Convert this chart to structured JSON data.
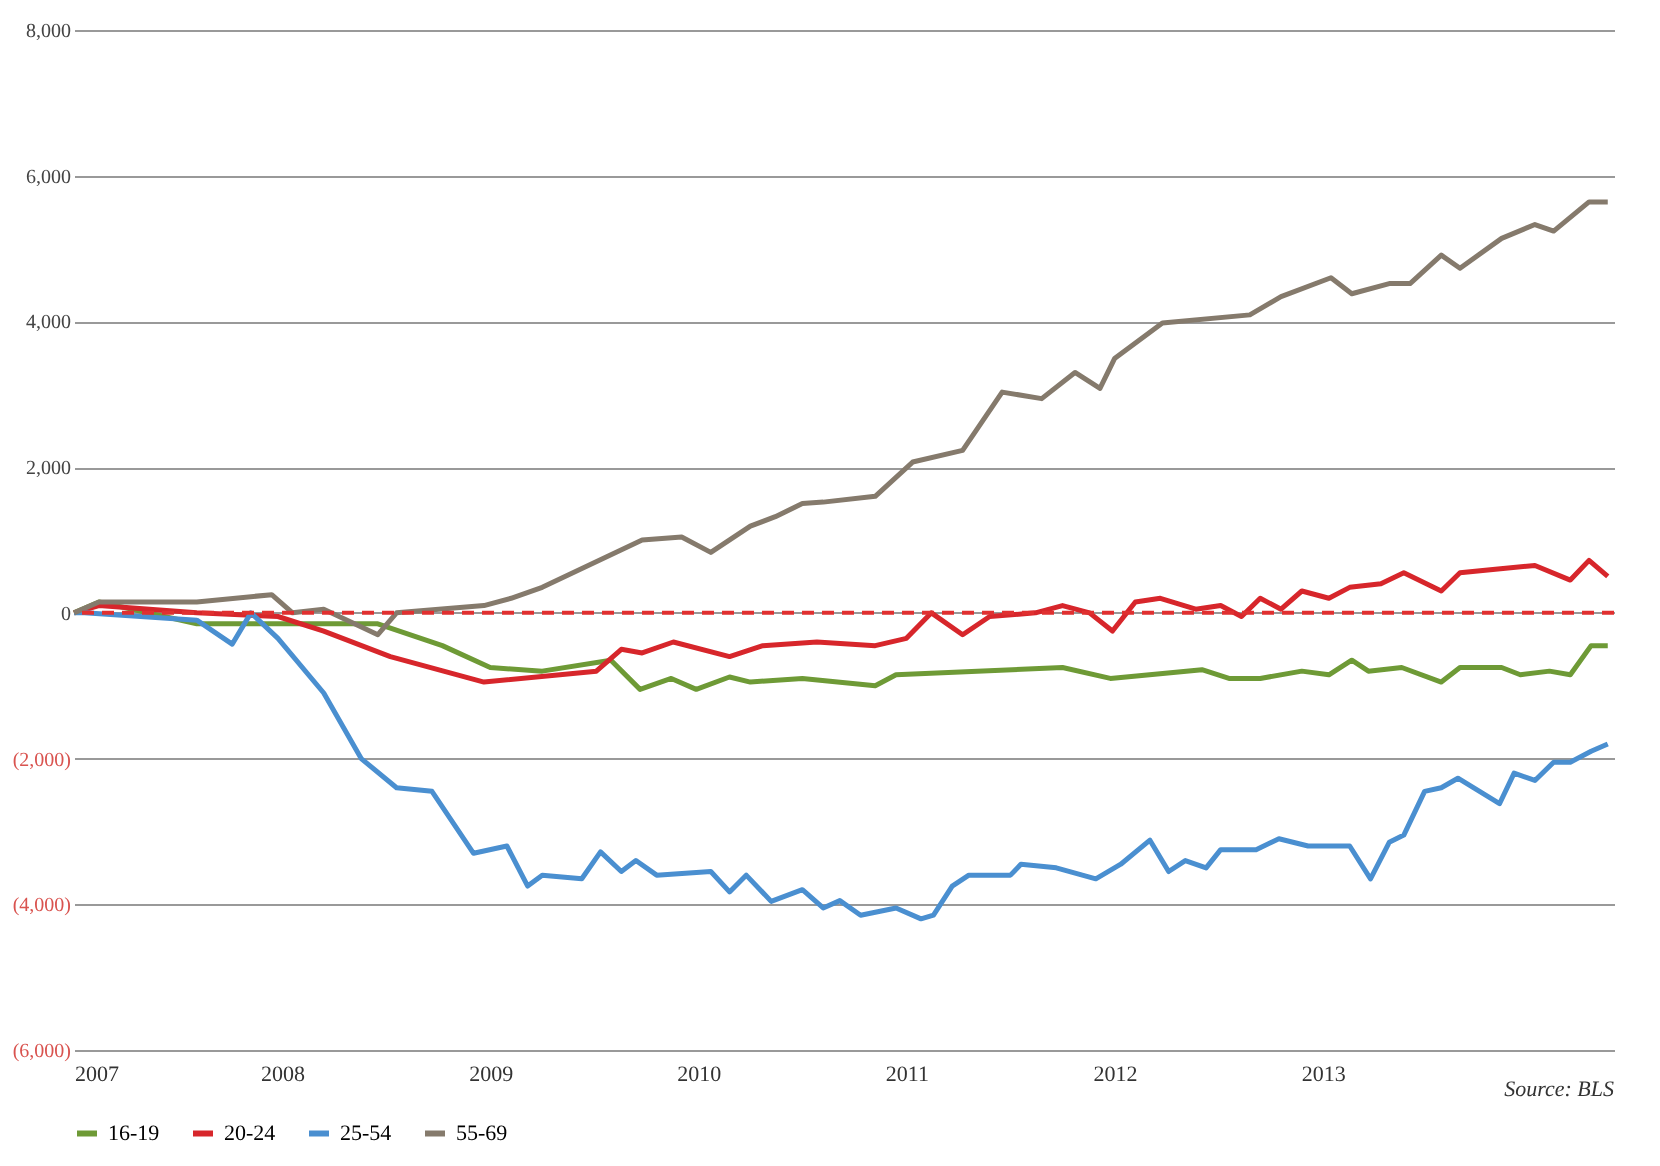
{
  "chart_data": {
    "type": "line",
    "annotations": [
      "Source: BLS"
    ],
    "xlim": [
      2007,
      2014.4
    ],
    "xticks": [
      2007,
      2008,
      2009,
      2010,
      2011,
      2012,
      2013
    ],
    "ylim": [
      -6000,
      8000
    ],
    "yticks": [
      {
        "value": -6000,
        "label": "(6,000)"
      },
      {
        "value": -4000,
        "label": "(4,000)"
      },
      {
        "value": -2000,
        "label": "(2,000)"
      },
      0,
      {
        "value": 2000,
        "label": "2,000"
      },
      {
        "value": 4000,
        "label": "4,000"
      },
      {
        "value": 6000,
        "label": "6,000"
      },
      {
        "value": 8000,
        "label": "8,000"
      }
    ],
    "grid": "y",
    "legend": "bottom",
    "line_style": "solid",
    "marker": "none",
    "ref_lines": [
      {
        "axis": "y",
        "value": 0,
        "color": "#e03030",
        "line_style": "dashed"
      }
    ],
    "series": [
      {
        "name": "16-19",
        "color": "#6e9a36",
        "x": [
          2007.0,
          2007.12,
          2007.59,
          2008.46,
          2008.77,
          2009.0,
          2009.25,
          2009.58,
          2009.72,
          2009.87,
          2009.99,
          2010.15,
          2010.25,
          2010.5,
          2010.85,
          2010.95,
          2011.75,
          2011.98,
          2012.42,
          2012.55,
          2012.7,
          2012.9,
          2013.03,
          2013.14,
          2013.22,
          2013.38,
          2013.57,
          2013.66,
          2013.86,
          2013.95,
          2014.09,
          2014.19,
          2014.29,
          2014.37
        ],
        "values": [
          0,
          150,
          -150,
          -150,
          -450,
          -750,
          -800,
          -650,
          -1050,
          -900,
          -1050,
          -880,
          -950,
          -900,
          -1000,
          -850,
          -750,
          -900,
          -780,
          -900,
          -900,
          -800,
          -850,
          -650,
          -800,
          -750,
          -950,
          -750,
          -750,
          -850,
          -800,
          -850,
          -450,
          -450
        ]
      },
      {
        "name": "20-24",
        "color": "#d7262b",
        "x": [
          2007.0,
          2007.12,
          2007.59,
          2007.98,
          2008.2,
          2008.52,
          2008.97,
          2009.51,
          2009.63,
          2009.73,
          2009.88,
          2010.15,
          2010.31,
          2010.57,
          2010.85,
          2011.0,
          2011.12,
          2011.27,
          2011.4,
          2011.62,
          2011.75,
          2011.88,
          2011.99,
          2012.1,
          2012.22,
          2012.39,
          2012.51,
          2012.61,
          2012.7,
          2012.8,
          2012.9,
          2013.03,
          2013.13,
          2013.28,
          2013.39,
          2013.57,
          2013.66,
          2013.83,
          2014.02,
          2014.19,
          2014.28,
          2014.37
        ],
        "values": [
          0,
          100,
          0,
          -50,
          -250,
          -600,
          -950,
          -800,
          -500,
          -550,
          -400,
          -600,
          -450,
          -400,
          -450,
          -350,
          0,
          -300,
          -50,
          0,
          100,
          0,
          -250,
          150,
          200,
          50,
          100,
          -50,
          200,
          50,
          300,
          200,
          350,
          400,
          550,
          300,
          550,
          600,
          650,
          450,
          720,
          500
        ]
      },
      {
        "name": "25-54",
        "color": "#4a8fd0",
        "x": [
          2007.0,
          2007.05,
          2007.59,
          2007.76,
          2007.85,
          2007.98,
          2008.2,
          2008.38,
          2008.55,
          2008.72,
          2008.92,
          2009.08,
          2009.18,
          2009.25,
          2009.44,
          2009.53,
          2009.63,
          2009.7,
          2009.8,
          2010.06,
          2010.15,
          2010.23,
          2010.35,
          2010.5,
          2010.6,
          2010.68,
          2010.78,
          2010.95,
          2011.07,
          2011.13,
          2011.22,
          2011.3,
          2011.5,
          2011.55,
          2011.72,
          2011.91,
          2012.03,
          2012.17,
          2012.26,
          2012.34,
          2012.44,
          2012.51,
          2012.68,
          2012.79,
          2012.93,
          2013.13,
          2013.23,
          2013.32,
          2013.39,
          2013.49,
          2013.57,
          2013.65,
          2013.85,
          2013.92,
          2014.02,
          2014.11,
          2014.19,
          2014.29,
          2014.37
        ],
        "values": [
          0,
          0,
          -100,
          -430,
          0,
          -350,
          -1100,
          -2000,
          -2400,
          -2450,
          -3300,
          -3200,
          -3750,
          -3600,
          -3650,
          -3280,
          -3550,
          -3400,
          -3600,
          -3550,
          -3830,
          -3600,
          -3960,
          -3800,
          -4050,
          -3950,
          -4150,
          -4050,
          -4200,
          -4150,
          -3750,
          -3600,
          -3600,
          -3450,
          -3500,
          -3650,
          -3450,
          -3120,
          -3550,
          -3400,
          -3500,
          -3250,
          -3250,
          -3100,
          -3200,
          -3200,
          -3650,
          -3150,
          -3050,
          -2450,
          -2400,
          -2270,
          -2620,
          -2200,
          -2300,
          -2050,
          -2050,
          -1900,
          -1800
        ]
      },
      {
        "name": "55-69",
        "color": "#857a6c",
        "x": [
          2007.0,
          2007.12,
          2007.59,
          2007.95,
          2008.05,
          2008.2,
          2008.46,
          2008.55,
          2008.97,
          2009.1,
          2009.25,
          2009.73,
          2009.92,
          2010.06,
          2010.25,
          2010.37,
          2010.5,
          2010.6,
          2010.85,
          2011.03,
          2011.27,
          2011.46,
          2011.65,
          2011.81,
          2011.93,
          2012.0,
          2012.23,
          2012.65,
          2012.8,
          2013.04,
          2013.14,
          2013.32,
          2013.42,
          2013.57,
          2013.66,
          2013.86,
          2014.02,
          2014.11,
          2014.28,
          2014.37
        ],
        "values": [
          0,
          150,
          150,
          250,
          0,
          50,
          -300,
          0,
          100,
          200,
          350,
          1000,
          1040,
          830,
          1190,
          1320,
          1500,
          1520,
          1600,
          2070,
          2230,
          3030,
          2940,
          3300,
          3080,
          3490,
          3980,
          4090,
          4340,
          4600,
          4380,
          4520,
          4520,
          4910,
          4730,
          5140,
          5330,
          5240,
          5640,
          5640
        ]
      }
    ]
  }
}
